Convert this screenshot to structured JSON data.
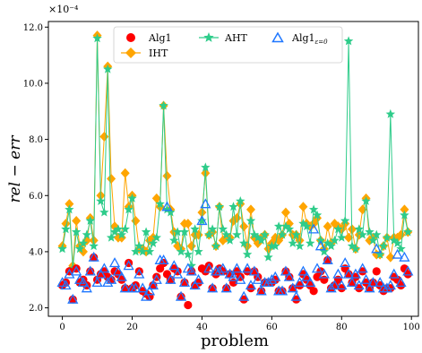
{
  "chart_data": {
    "type": "scatter",
    "xlabel": "problem",
    "ylabel": "rel − err",
    "y_scale_label": "×10⁻⁴",
    "xlim": [
      -4,
      102
    ],
    "ylim": [
      1.7,
      12.2
    ],
    "xticks": [
      0,
      20,
      40,
      60,
      80,
      100
    ],
    "yticks": [
      2.0,
      4.0,
      6.0,
      8.0,
      10.0,
      12.0
    ],
    "ytick_labels": [
      "2.0",
      "4.0",
      "6.0",
      "8.0",
      "10.0",
      "12.0"
    ],
    "grid": false,
    "legend_position": "top-center",
    "colors": {
      "Alg1": "#ff0000",
      "IHT": "#ffa500",
      "AHT": "#2ecc8a",
      "Alg1_eps": "#1f77ff"
    },
    "series": [
      {
        "name": "Alg1",
        "marker": "circle",
        "values": [
          2.8,
          2.9,
          3.3,
          2.3,
          3.4,
          2.9,
          3.0,
          2.8,
          3.3,
          3.8,
          3.0,
          3.2,
          3.3,
          3.1,
          3.0,
          3.3,
          3.2,
          3.0,
          2.7,
          3.6,
          2.7,
          2.8,
          3.3,
          2.6,
          2.5,
          2.4,
          2.8,
          3.1,
          3.4,
          3.6,
          3.2,
          3.0,
          3.4,
          3.3,
          2.4,
          2.9,
          2.1,
          3.3,
          2.8,
          2.9,
          3.4,
          3.3,
          3.5,
          2.7,
          3.2,
          3.4,
          3.3,
          2.7,
          3.2,
          2.9,
          3.3,
          3.1,
          2.3,
          3.3,
          2.7,
          3.3,
          3.1,
          2.6,
          2.9,
          2.9,
          2.9,
          3.0,
          2.6,
          2.6,
          3.3,
          3.1,
          2.7,
          2.3,
          2.8,
          3.2,
          3.0,
          2.8,
          2.6,
          3.1,
          3.3,
          3.0,
          3.7,
          2.7,
          2.8,
          3.0,
          2.7,
          3.4,
          3.2,
          2.9,
          3.1,
          2.7,
          3.3,
          2.9,
          2.7,
          2.9,
          3.3,
          2.8,
          2.6,
          2.7,
          2.7,
          3.1,
          3.0,
          2.8,
          3.4,
          3.2
        ]
      },
      {
        "name": "IHT",
        "marker": "diamond",
        "values": [
          4.2,
          5.0,
          5.7,
          3.5,
          5.1,
          4.2,
          4.0,
          4.4,
          5.2,
          4.4,
          11.7,
          6.0,
          8.1,
          10.6,
          6.6,
          4.9,
          4.5,
          4.5,
          6.8,
          5.6,
          6.0,
          5.1,
          4.1,
          4.1,
          4.0,
          4.4,
          4.5,
          5.9,
          5.6,
          9.2,
          6.7,
          5.5,
          4.7,
          4.2,
          4.1,
          5.0,
          5.0,
          4.2,
          4.6,
          4.6,
          5.4,
          6.8,
          4.6,
          4.7,
          4.2,
          5.6,
          4.4,
          4.5,
          4.5,
          5.1,
          5.2,
          5.7,
          4.9,
          4.2,
          5.5,
          4.5,
          4.3,
          4.5,
          4.6,
          4.1,
          4.3,
          4.5,
          4.4,
          4.6,
          5.4,
          5.0,
          4.6,
          4.6,
          4.4,
          5.6,
          5.0,
          4.9,
          5.0,
          5.2,
          4.4,
          4.1,
          4.9,
          4.3,
          5.0,
          4.9,
          4.8,
          5.0,
          4.5,
          4.8,
          4.1,
          4.6,
          5.5,
          5.9,
          4.4,
          4.5,
          3.9,
          3.9,
          4.2,
          4.5,
          3.8,
          4.5,
          4.5,
          4.6,
          5.5,
          4.7
        ]
      },
      {
        "name": "AHT",
        "marker": "star",
        "values": [
          4.1,
          4.8,
          5.5,
          3.4,
          4.7,
          4.1,
          4.3,
          4.6,
          5.1,
          4.2,
          11.6,
          5.8,
          5.4,
          10.5,
          4.5,
          4.7,
          4.8,
          4.6,
          4.8,
          5.5,
          5.9,
          4.0,
          4.2,
          4.0,
          4.7,
          4.0,
          4.3,
          4.5,
          5.7,
          9.2,
          5.5,
          5.4,
          4.4,
          4.7,
          4.0,
          4.7,
          3.9,
          3.5,
          4.8,
          4.0,
          5.1,
          7.0,
          4.6,
          4.8,
          4.2,
          5.6,
          4.8,
          4.6,
          4.4,
          5.6,
          4.6,
          5.8,
          4.3,
          3.9,
          5.1,
          4.6,
          4.5,
          4.4,
          4.6,
          3.8,
          4.2,
          4.2,
          4.9,
          4.6,
          4.9,
          4.8,
          4.3,
          4.6,
          4.2,
          5.0,
          4.9,
          4.3,
          5.5,
          5.3,
          4.4,
          4.0,
          4.3,
          4.2,
          4.4,
          4.8,
          4.5,
          5.1,
          11.5,
          4.2,
          4.1,
          4.8,
          4.6,
          5.8,
          4.7,
          4.4,
          4.6,
          3.9,
          4.2,
          4.5,
          8.9,
          4.4,
          4.3,
          4.1,
          5.3,
          4.7
        ]
      },
      {
        "name": "Alg1ε=0",
        "marker": "triangle",
        "values": [
          2.9,
          2.8,
          3.2,
          2.3,
          3.3,
          3.0,
          2.9,
          2.7,
          3.3,
          3.8,
          2.9,
          3.2,
          3.4,
          2.9,
          3.0,
          3.6,
          3.3,
          3.1,
          2.7,
          3.5,
          2.7,
          2.7,
          3.2,
          2.7,
          2.4,
          2.6,
          2.8,
          3.0,
          3.7,
          3.7,
          5.6,
          3.0,
          3.5,
          3.2,
          2.4,
          2.9,
          3.4,
          3.3,
          2.8,
          3.0,
          5.1,
          5.7,
          3.4,
          2.7,
          3.3,
          3.3,
          3.4,
          2.7,
          3.2,
          3.1,
          3.4,
          3.0,
          2.4,
          3.4,
          2.8,
          3.3,
          3.0,
          2.6,
          2.9,
          2.9,
          3.0,
          3.1,
          2.6,
          2.6,
          3.3,
          3.1,
          2.7,
          2.4,
          2.9,
          3.3,
          3.1,
          2.9,
          4.8,
          3.4,
          4.2,
          3.2,
          3.7,
          2.7,
          2.8,
          3.2,
          2.8,
          3.6,
          3.2,
          2.9,
          3.2,
          2.8,
          3.4,
          3.0,
          2.7,
          2.9,
          4.1,
          2.9,
          2.7,
          2.7,
          2.8,
          3.2,
          3.9,
          2.9,
          3.8,
          3.3
        ]
      }
    ]
  },
  "legend": {
    "alg1": "Alg1",
    "aht": "AHT",
    "alg1eps_main": "Alg1",
    "alg1eps_sub": "ε=0",
    "iht": "IHT"
  }
}
